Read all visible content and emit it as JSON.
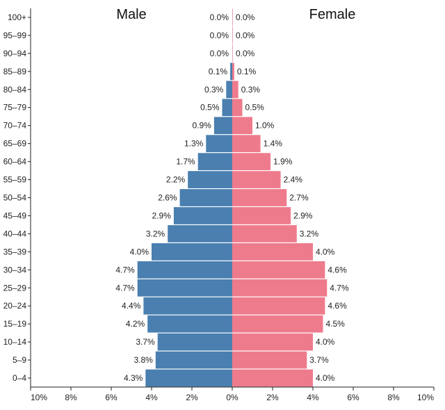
{
  "chart_data": {
    "type": "bar",
    "orientation": "horizontal",
    "layout": "population-pyramid",
    "categories": [
      "0–4",
      "5–9",
      "10–14",
      "15–19",
      "20–24",
      "25–29",
      "30–34",
      "35–39",
      "40–44",
      "45–49",
      "50–54",
      "55–59",
      "60–64",
      "65–69",
      "70–74",
      "75–79",
      "80–84",
      "85–89",
      "90–94",
      "95–99",
      "100+"
    ],
    "series": [
      {
        "name": "Male",
        "side": "left",
        "color": "#4a7fb0",
        "values": [
          4.3,
          3.8,
          3.7,
          4.2,
          4.4,
          4.7,
          4.7,
          4.0,
          3.2,
          2.9,
          2.6,
          2.2,
          1.7,
          1.3,
          0.9,
          0.5,
          0.3,
          0.1,
          0.0,
          0.0,
          0.0
        ],
        "labels": [
          "4.3%",
          "3.8%",
          "3.7%",
          "4.2%",
          "4.4%",
          "4.7%",
          "4.7%",
          "4.0%",
          "3.2%",
          "2.9%",
          "2.6%",
          "2.2%",
          "1.7%",
          "1.3%",
          "0.9%",
          "0.5%",
          "0.3%",
          "0.1%",
          "0.0%",
          "0.0%",
          "0.0%"
        ]
      },
      {
        "name": "Female",
        "side": "right",
        "color": "#ee7b8c",
        "values": [
          4.0,
          3.7,
          4.0,
          4.5,
          4.6,
          4.7,
          4.6,
          4.0,
          3.2,
          2.9,
          2.7,
          2.4,
          1.9,
          1.4,
          1.0,
          0.5,
          0.3,
          0.1,
          0.0,
          0.0,
          0.0
        ],
        "labels": [
          "4.0%",
          "3.7%",
          "4.0%",
          "4.5%",
          "4.6%",
          "4.7%",
          "4.6%",
          "4.0%",
          "3.2%",
          "2.9%",
          "2.7%",
          "2.4%",
          "1.9%",
          "1.4%",
          "1.0%",
          "0.5%",
          "0.3%",
          "0.1%",
          "0.0%",
          "0.0%",
          "0.0%"
        ]
      }
    ],
    "x_ticks": [
      {
        "value": -10,
        "label": "10%"
      },
      {
        "value": -8,
        "label": "8%"
      },
      {
        "value": -6,
        "label": "6%"
      },
      {
        "value": -4,
        "label": "4%"
      },
      {
        "value": -2,
        "label": "2%"
      },
      {
        "value": 0,
        "label": "0%"
      },
      {
        "value": 2,
        "label": "2%"
      },
      {
        "value": 4,
        "label": "4%"
      },
      {
        "value": 6,
        "label": "6%"
      },
      {
        "value": 8,
        "label": "8%"
      },
      {
        "value": 10,
        "label": "10%"
      }
    ],
    "xlim": [
      -10,
      10
    ],
    "title": "",
    "xlabel": "",
    "ylabel": "",
    "grid": false
  }
}
